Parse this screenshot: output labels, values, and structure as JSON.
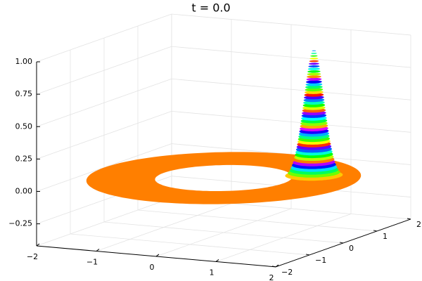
{
  "chart_data": {
    "type": "surface3d",
    "title": "t = 0.0",
    "xlim": [
      -2,
      2
    ],
    "ylim": [
      -2,
      2
    ],
    "zlim": [
      -0.42,
      1.0
    ],
    "xticks": [
      {
        "value": -2,
        "label": "−2"
      },
      {
        "value": -1,
        "label": "−1"
      },
      0,
      1,
      2
    ],
    "yticks": [
      {
        "value": -2,
        "label": "−2"
      },
      {
        "value": -1,
        "label": "−1"
      },
      0,
      1,
      2
    ],
    "zticks": [
      {
        "value": -0.25,
        "label": "−0.25"
      },
      {
        "value": 0,
        "label": "0.00"
      },
      {
        "value": 0.25,
        "label": "0.25"
      },
      {
        "value": 0.5,
        "label": "0.50"
      },
      {
        "value": 0.75,
        "label": "0.75"
      },
      {
        "value": 1,
        "label": "1.00"
      }
    ],
    "grid": true,
    "ring": {
      "inner_radius": 1,
      "outer_radius": 2,
      "z": 0,
      "color": "#ff7f00"
    },
    "peak": {
      "x": 1.2,
      "y": 0.55,
      "height": 1.0,
      "width": 0.15
    }
  }
}
